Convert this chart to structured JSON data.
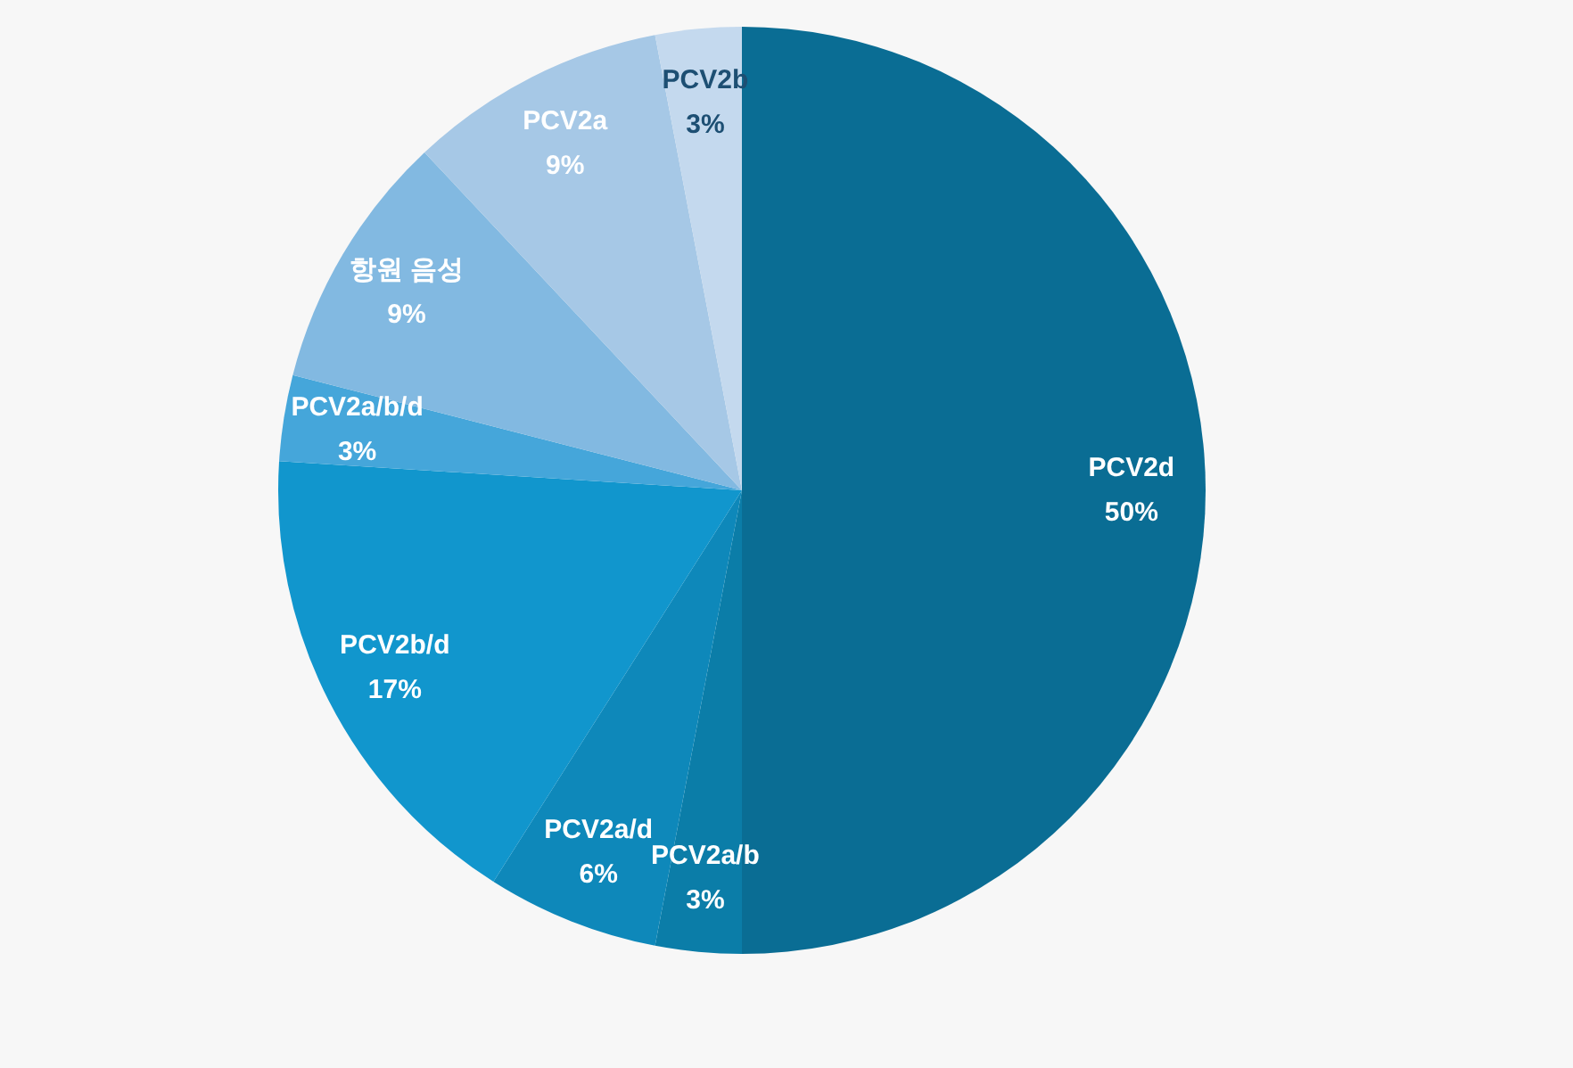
{
  "chart_data": {
    "type": "pie",
    "categories": [
      "PCV2d",
      "PCV2a/b",
      "PCV2a/d",
      "PCV2b/d",
      "PCV2a/b/d",
      "항원 음성",
      "PCV2a",
      "PCV2b"
    ],
    "values": [
      50,
      3,
      6,
      17,
      3,
      9,
      9,
      3
    ],
    "value_labels": [
      "50%",
      "3%",
      "6%",
      "17%",
      "3%",
      "9%",
      "9%",
      "3%"
    ],
    "colors": [
      "#0a6d94",
      "#0b7da8",
      "#0e88ba",
      "#1196cd",
      "#45a6da",
      "#82b9e1",
      "#a6c8e6",
      "#c4d9ee"
    ],
    "legend": false
  }
}
